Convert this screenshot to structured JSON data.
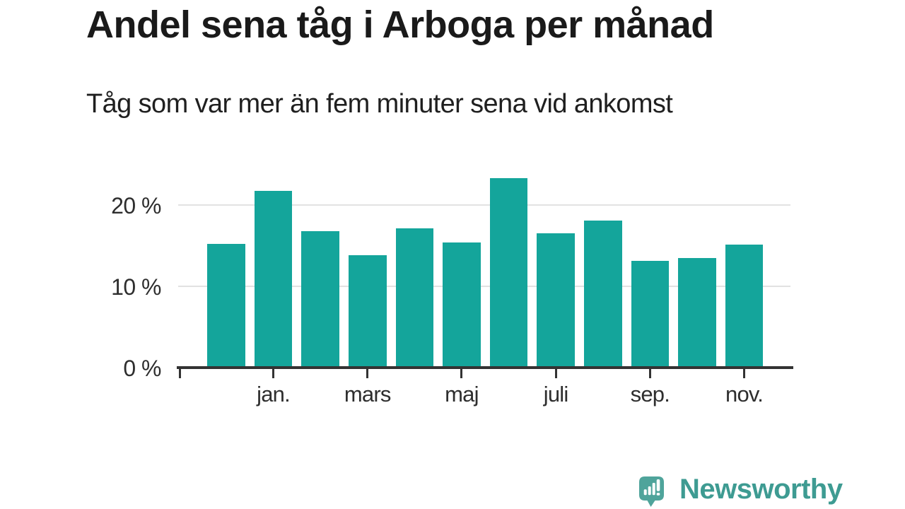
{
  "chart_data": {
    "type": "bar",
    "title": "Andel sena tåg i Arboga per månad",
    "subtitle": "Tåg som var mer än fem minuter sena vid ankomst",
    "categories": [
      "",
      "jan.",
      "",
      "mars",
      "",
      "maj",
      "",
      "juli",
      "",
      "sep.",
      "",
      "nov."
    ],
    "values": [
      15.1,
      21.7,
      16.7,
      13.7,
      17.0,
      15.3,
      23.2,
      16.4,
      18.0,
      13.0,
      13.4,
      15.0
    ],
    "unit": "%",
    "x_tick_labels": [
      "jan.",
      "mars",
      "maj",
      "juli",
      "sep.",
      "nov."
    ],
    "y_ticks": [
      {
        "value": 0,
        "label": "0 %"
      },
      {
        "value": 10,
        "label": "10 %"
      },
      {
        "value": 20,
        "label": "20 %"
      }
    ],
    "ylim": [
      0,
      24
    ],
    "grid": "horizontal-only",
    "legend": "none",
    "bar_color": "#14A59B",
    "grid_color": "#e2e2e2",
    "axis_color": "#333333"
  },
  "footer": {
    "brand": "Newsworthy",
    "brand_color": "#3E9B92",
    "logo_icon": "bar-chart-speech-bubble-icon",
    "logo_bubble_color": "#4FA49B"
  }
}
